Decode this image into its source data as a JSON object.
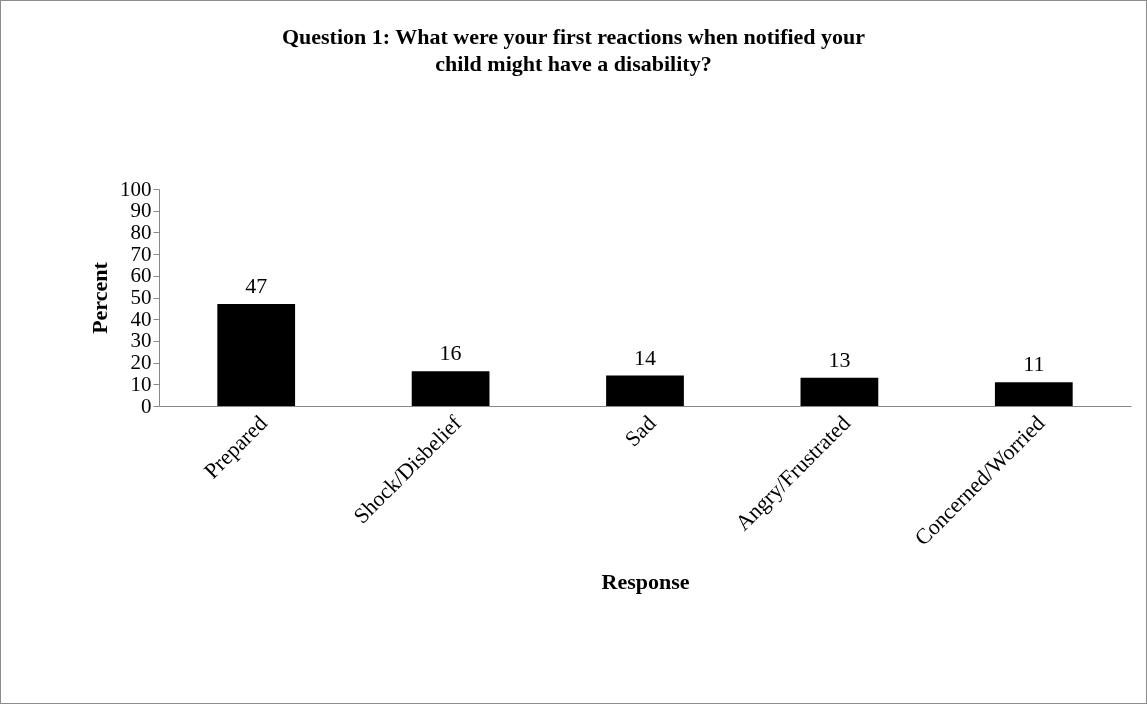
{
  "chart_data": {
    "type": "bar",
    "title": "Question 1: What were your first reactions when notified your child might have a disability?",
    "xlabel": "Response",
    "ylabel": "Percent",
    "categories": [
      "Prepared",
      "Shock/Disbelief",
      "Sad",
      "Angry/Frustrated",
      "Concerned/Worried"
    ],
    "values": [
      47,
      16,
      14,
      13,
      11
    ],
    "color": "#000000",
    "ylim": [
      0,
      100
    ],
    "yticks": [
      0,
      10,
      20,
      30,
      40,
      50,
      60,
      70,
      80,
      90,
      100
    ],
    "grid": false,
    "data_labels": true
  }
}
